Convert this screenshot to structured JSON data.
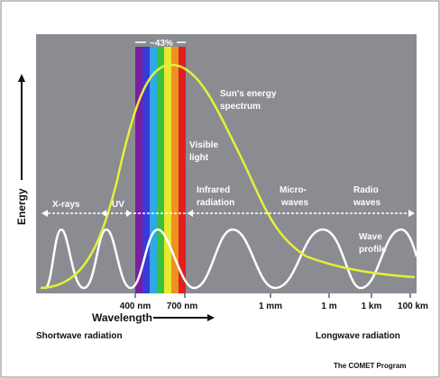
{
  "energy_axis": "Energy",
  "percent": "~43%",
  "sun_spectrum": [
    "Sun's energy",
    "spectrum"
  ],
  "visible": [
    "Visible",
    "light"
  ],
  "bands": [
    [
      "X-rays"
    ],
    [
      "UV"
    ],
    [
      "Infrared",
      "radiation"
    ],
    [
      "Micro-",
      "waves"
    ],
    [
      "Radio",
      "waves"
    ]
  ],
  "wave_profile": [
    "Wave",
    "profile"
  ],
  "wavelength_ticks": [
    "400 nm",
    "700 nm",
    "1 mm",
    "1 m",
    "1 km",
    "100 km"
  ],
  "wavelength_axis": "Wavelength",
  "shortwave": "Shortwave radiation",
  "longwave": "Longwave radiation",
  "credit": "The COMET Program"
}
